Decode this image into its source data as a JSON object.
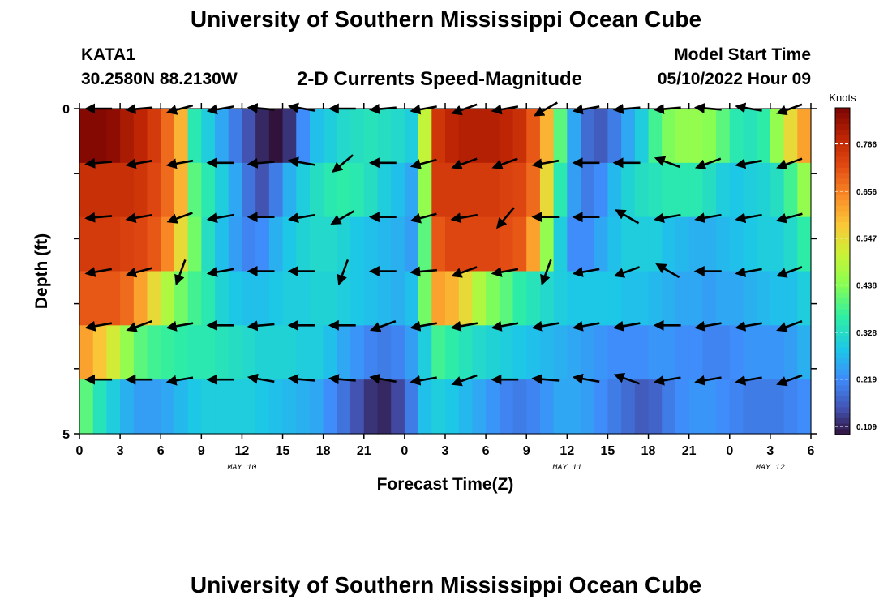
{
  "header": {
    "title": "University of Southern Mississippi Ocean Cube",
    "station": "KATA1",
    "coords": "30.2580N  88.2130W",
    "subtitle": "2-D Currents Speed-Magnitude",
    "model_start_label": "Model Start Time",
    "model_start_value": "05/10/2022 Hour 09"
  },
  "footer": {
    "title": "University of Southern Mississippi Ocean Cube"
  },
  "chart_data": {
    "type": "heatmap",
    "title": "2-D Currents Speed-Magnitude",
    "xlabel": "Forecast Time(Z)",
    "ylabel": "Depth (ft)",
    "x_hours": [
      0,
      3,
      6,
      9,
      12,
      15,
      18,
      21,
      24,
      27,
      30,
      33,
      36,
      39,
      42,
      45,
      48,
      51,
      54
    ],
    "x_tick_labels": [
      "0",
      "3",
      "6",
      "9",
      "12",
      "15",
      "18",
      "21",
      "0",
      "3",
      "6",
      "9",
      "12",
      "15",
      "18",
      "21",
      "0",
      "3",
      "6"
    ],
    "date_labels": [
      {
        "hour": 12,
        "label": "MAY 10"
      },
      {
        "hour": 36,
        "label": "MAY 11"
      },
      {
        "hour": 51,
        "label": "MAY 12"
      }
    ],
    "y_tick_labels": [
      "0",
      "5"
    ],
    "ylim": [
      0,
      5
    ],
    "depth_levels": [
      0,
      1,
      2,
      3,
      4,
      5
    ],
    "colorbar": {
      "label": "Knots",
      "ticks": [
        0.109,
        0.219,
        0.328,
        0.438,
        0.547,
        0.656,
        0.766
      ],
      "tick_labels": [
        "0.109",
        "0.219",
        "0.328",
        "0.438",
        "0.547",
        "0.656",
        "0.766"
      ],
      "range": [
        0.09,
        0.85
      ]
    },
    "columns": 54,
    "speed_knots": [
      [
        0.84,
        0.84,
        0.83,
        0.8,
        0.78,
        0.74,
        0.68,
        0.6,
        0.35,
        0.3,
        0.25,
        0.2,
        0.15,
        0.11,
        0.09,
        0.12,
        0.22,
        0.28,
        0.3,
        0.32,
        0.33,
        0.34,
        0.33,
        0.32,
        0.3,
        0.5,
        0.75,
        0.78,
        0.79,
        0.79,
        0.79,
        0.78,
        0.76,
        0.7,
        0.6,
        0.4,
        0.25,
        0.18,
        0.16,
        0.2,
        0.25,
        0.3,
        0.38,
        0.43,
        0.45,
        0.45,
        0.44,
        0.4,
        0.35,
        0.34,
        0.36,
        0.45,
        0.55,
        0.62
      ],
      [
        0.76,
        0.76,
        0.76,
        0.76,
        0.75,
        0.72,
        0.68,
        0.6,
        0.4,
        0.35,
        0.3,
        0.25,
        0.19,
        0.15,
        0.2,
        0.26,
        0.3,
        0.33,
        0.35,
        0.36,
        0.35,
        0.33,
        0.3,
        0.28,
        0.25,
        0.45,
        0.74,
        0.74,
        0.74,
        0.74,
        0.74,
        0.73,
        0.72,
        0.68,
        0.55,
        0.35,
        0.24,
        0.2,
        0.22,
        0.27,
        0.31,
        0.33,
        0.34,
        0.35,
        0.35,
        0.35,
        0.33,
        0.3,
        0.29,
        0.3,
        0.31,
        0.33,
        0.38,
        0.45
      ],
      [
        0.74,
        0.74,
        0.74,
        0.73,
        0.72,
        0.7,
        0.65,
        0.55,
        0.42,
        0.33,
        0.28,
        0.24,
        0.21,
        0.22,
        0.26,
        0.29,
        0.31,
        0.32,
        0.32,
        0.31,
        0.29,
        0.28,
        0.27,
        0.26,
        0.24,
        0.4,
        0.7,
        0.72,
        0.72,
        0.72,
        0.72,
        0.71,
        0.7,
        0.62,
        0.45,
        0.3,
        0.22,
        0.22,
        0.25,
        0.28,
        0.3,
        0.3,
        0.3,
        0.28,
        0.27,
        0.26,
        0.26,
        0.27,
        0.28,
        0.29,
        0.3,
        0.3,
        0.32,
        0.36
      ],
      [
        0.7,
        0.7,
        0.7,
        0.68,
        0.62,
        0.55,
        0.48,
        0.42,
        0.38,
        0.35,
        0.31,
        0.29,
        0.28,
        0.28,
        0.29,
        0.3,
        0.3,
        0.31,
        0.31,
        0.3,
        0.29,
        0.28,
        0.27,
        0.26,
        0.28,
        0.42,
        0.62,
        0.6,
        0.55,
        0.48,
        0.43,
        0.4,
        0.36,
        0.34,
        0.32,
        0.3,
        0.29,
        0.29,
        0.29,
        0.29,
        0.28,
        0.28,
        0.27,
        0.26,
        0.25,
        0.25,
        0.24,
        0.25,
        0.25,
        0.26,
        0.27,
        0.28,
        0.28,
        0.3
      ],
      [
        0.62,
        0.58,
        0.52,
        0.45,
        0.4,
        0.38,
        0.37,
        0.36,
        0.35,
        0.35,
        0.34,
        0.33,
        0.32,
        0.31,
        0.31,
        0.31,
        0.3,
        0.3,
        0.28,
        0.25,
        0.23,
        0.21,
        0.2,
        0.21,
        0.24,
        0.3,
        0.38,
        0.36,
        0.34,
        0.32,
        0.31,
        0.3,
        0.29,
        0.28,
        0.27,
        0.26,
        0.25,
        0.24,
        0.23,
        0.22,
        0.22,
        0.22,
        0.23,
        0.23,
        0.22,
        0.22,
        0.21,
        0.21,
        0.22,
        0.23,
        0.23,
        0.23,
        0.24,
        0.26
      ],
      [
        0.4,
        0.34,
        0.3,
        0.26,
        0.24,
        0.24,
        0.25,
        0.27,
        0.29,
        0.3,
        0.3,
        0.3,
        0.3,
        0.29,
        0.28,
        0.27,
        0.26,
        0.25,
        0.22,
        0.19,
        0.15,
        0.12,
        0.11,
        0.14,
        0.2,
        0.28,
        0.3,
        0.29,
        0.27,
        0.25,
        0.23,
        0.21,
        0.2,
        0.21,
        0.23,
        0.25,
        0.25,
        0.24,
        0.22,
        0.2,
        0.18,
        0.16,
        0.17,
        0.2,
        0.22,
        0.23,
        0.23,
        0.22,
        0.21,
        0.2,
        0.2,
        0.2,
        0.21,
        0.22
      ]
    ],
    "arrow_hours": [
      1.5,
      4.5,
      7.5,
      10.5,
      13.5,
      16.5,
      19.5,
      22.5,
      25.5,
      28.5,
      31.5,
      34.5,
      37.5,
      40.5,
      43.5,
      46.5,
      49.5,
      52.5
    ],
    "arrow_direction_deg": [
      [
        180,
        185,
        195,
        190,
        175,
        170,
        180,
        185,
        190,
        200,
        190,
        210,
        190,
        185,
        185,
        175,
        170,
        200
      ],
      [
        185,
        190,
        190,
        180,
        185,
        170,
        220,
        180,
        195,
        200,
        200,
        190,
        180,
        180,
        160,
        200,
        190,
        200
      ],
      [
        185,
        190,
        200,
        190,
        180,
        190,
        210,
        180,
        195,
        190,
        230,
        180,
        180,
        150,
        190,
        190,
        190,
        195
      ],
      [
        190,
        195,
        250,
        190,
        180,
        180,
        250,
        180,
        185,
        200,
        190,
        250,
        190,
        200,
        150,
        180,
        190,
        200
      ],
      [
        190,
        200,
        190,
        180,
        185,
        180,
        180,
        200,
        190,
        190,
        190,
        190,
        190,
        190,
        180,
        190,
        190,
        200
      ],
      [
        180,
        180,
        190,
        180,
        170,
        175,
        175,
        170,
        190,
        200,
        180,
        175,
        170,
        160,
        190,
        190,
        190,
        200
      ]
    ]
  }
}
